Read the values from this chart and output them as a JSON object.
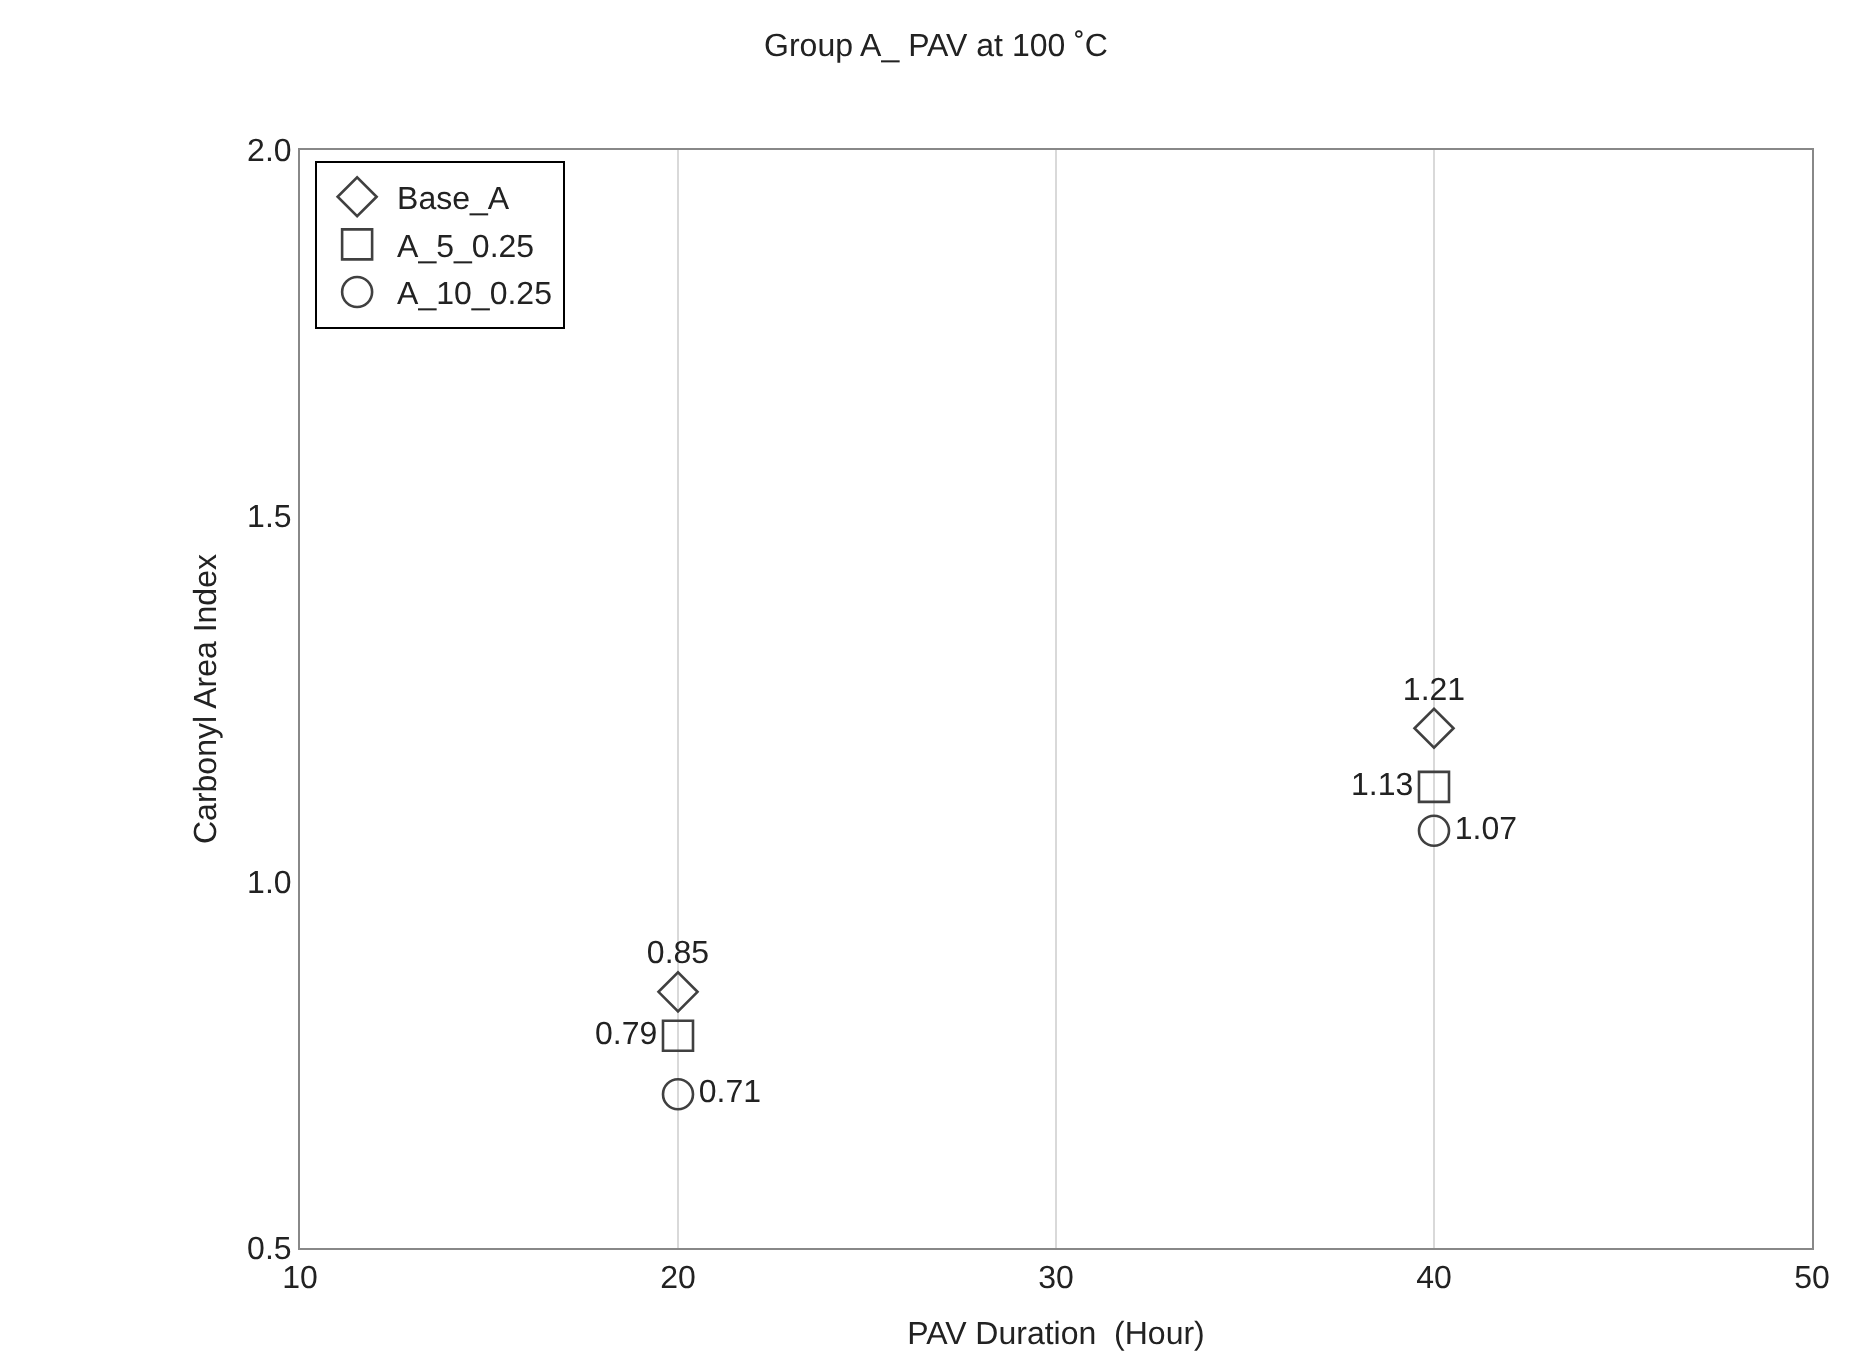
{
  "chart_data": {
    "type": "scatter",
    "title": "Group A_ PAV at 100 ˚C",
    "xlabel": "PAV Duration  (Hour)",
    "ylabel": "Carbonyl Area Index",
    "x": [
      20,
      40
    ],
    "series": [
      {
        "name": "Base_A",
        "color": "#404040",
        "marker": "diamond",
        "values": [
          0.85,
          1.21
        ]
      },
      {
        "name": "A_5_0.25",
        "color": "#404040",
        "marker": "square",
        "values": [
          0.79,
          1.13
        ]
      },
      {
        "name": "A_10_0.25",
        "color": "#404040",
        "marker": "circle",
        "values": [
          0.71,
          1.07
        ]
      }
    ],
    "xlim": [
      10,
      50
    ],
    "xticks": [
      10,
      20,
      30,
      40,
      50
    ],
    "ylim": [
      0.5,
      2.0
    ],
    "yticks": [
      0.5,
      {
        "value": 1,
        "label": "1.0"
      },
      1.5,
      {
        "value": 2,
        "label": "2.0"
      }
    ],
    "grid": "x",
    "legend": "top left",
    "data_labels": true
  }
}
